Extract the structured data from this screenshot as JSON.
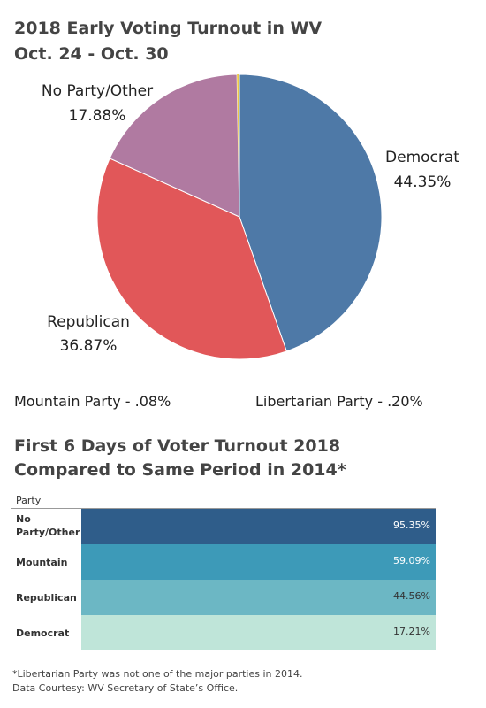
{
  "pie_chart": {
    "title_line1": "2018 Early Voting Turnout in WV",
    "title_line2": "Oct. 24 - Oct. 30",
    "notes": {
      "mountain": "Mountain Party - .08%",
      "libertarian": "Libertarian Party - .20%"
    },
    "slice_labels": {
      "democrat": {
        "name": "Democrat",
        "pct": "44.35%"
      },
      "republican": {
        "name": "Republican",
        "pct": "36.87%"
      },
      "other": {
        "name": "No Party/Other",
        "pct": "17.88%"
      }
    }
  },
  "bar_chart": {
    "title_line1": "First 6 Days of Voter Turnout 2018",
    "title_line2": "Compared to Same Period in 2014*",
    "column_header": "Party",
    "rows": [
      {
        "label": "No Party/Other",
        "value_label": "95.35%"
      },
      {
        "label": "Mountain",
        "value_label": "59.09%"
      },
      {
        "label": "Republican",
        "value_label": "44.56%"
      },
      {
        "label": "Democrat",
        "value_label": "17.21%"
      }
    ]
  },
  "footnote": {
    "line1": "*Libertarian Party was not one of the major parties in 2014.",
    "line2": " Data Courtesy: WV Secretary of State’s Office."
  },
  "chart_data": [
    {
      "type": "pie",
      "title": "2018 Early Voting Turnout in WV Oct. 24 - Oct. 30",
      "categories": [
        "Democrat",
        "Republican",
        "No Party/Other",
        "Libertarian Party",
        "Mountain Party"
      ],
      "values": [
        44.35,
        36.87,
        17.88,
        0.2,
        0.08
      ],
      "colors": [
        "#4e79a7",
        "#e15759",
        "#b07aa1",
        "#edc948",
        "#76b7b2"
      ]
    },
    {
      "type": "table",
      "title": "First 6 Days of Voter Turnout 2018 Compared to Same Period in 2014*",
      "categories": [
        "No Party/Other",
        "Mountain",
        "Republican",
        "Democrat"
      ],
      "values": [
        95.35,
        59.09,
        44.56,
        17.21
      ],
      "colors": [
        "#2f5d8a",
        "#3d9ab8",
        "#6cb7c4",
        "#bfe5d9"
      ]
    }
  ]
}
